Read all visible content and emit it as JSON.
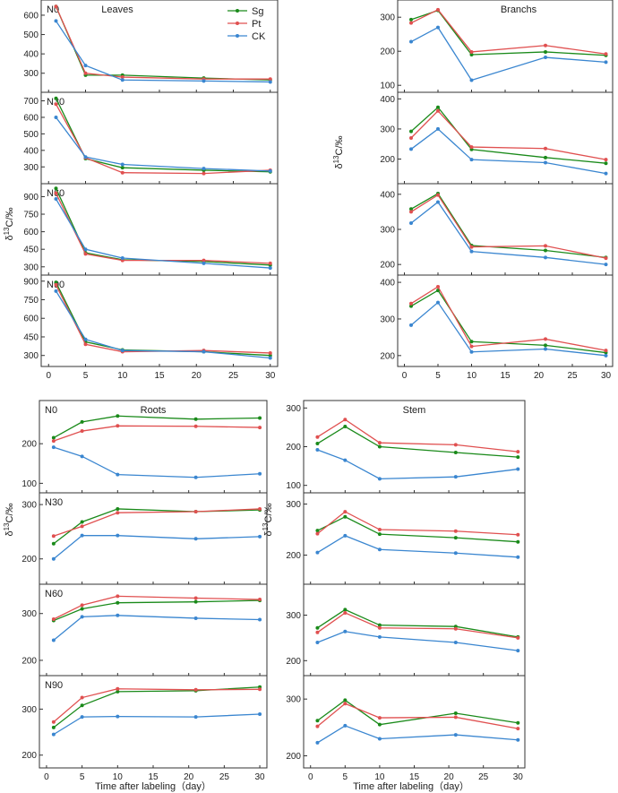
{
  "figure": {
    "y_axis_label_main": "δ",
    "y_axis_label_sup": "13",
    "y_axis_label_rest": "C/‰",
    "x_axis_label": "Time after labeling（day）"
  },
  "legend": [
    {
      "name": "Sg",
      "color": "#1a8a1a"
    },
    {
      "name": "Pt",
      "color": "#e05050"
    },
    {
      "name": "CK",
      "color": "#3a86d0"
    }
  ],
  "chart_data": [
    {
      "group": "Leaves",
      "type": "line",
      "x": [
        1,
        5,
        10,
        21,
        30
      ],
      "xlim": [
        -1,
        31
      ],
      "xticks": [
        0,
        5,
        10,
        15,
        20,
        25,
        30
      ],
      "panels": [
        {
          "label": "N0",
          "title": "Leaves",
          "ylim": [
            220,
            660
          ],
          "yticks": [
            300,
            400,
            500,
            600
          ],
          "series": [
            {
              "name": "Sg",
              "values": [
                645,
                290,
                290,
                275,
                265
              ]
            },
            {
              "name": "Pt",
              "values": [
                645,
                300,
                280,
                270,
                270
              ]
            },
            {
              "name": "CK",
              "values": [
                570,
                340,
                265,
                260,
                255
              ]
            }
          ]
        },
        {
          "label": "N30",
          "ylim": [
            220,
            730
          ],
          "yticks": [
            300,
            400,
            500,
            600,
            700
          ],
          "series": [
            {
              "name": "Sg",
              "values": [
                715,
                350,
                295,
                280,
                270
              ]
            },
            {
              "name": "Pt",
              "values": [
                680,
                355,
                265,
                260,
                280
              ]
            },
            {
              "name": "CK",
              "values": [
                600,
                360,
                315,
                290,
                275
              ]
            }
          ]
        },
        {
          "label": "N60",
          "ylim": [
            260,
            980
          ],
          "yticks": [
            300,
            450,
            600,
            750,
            900
          ],
          "series": [
            {
              "name": "Sg",
              "values": [
                970,
                420,
                360,
                345,
                315
              ]
            },
            {
              "name": "Pt",
              "values": [
                930,
                410,
                355,
                355,
                330
              ]
            },
            {
              "name": "CK",
              "values": [
                880,
                450,
                375,
                330,
                290
              ]
            }
          ]
        },
        {
          "label": "N90",
          "ylim": [
            240,
            920
          ],
          "yticks": [
            300,
            450,
            600,
            750,
            900
          ],
          "series": [
            {
              "name": "Sg",
              "values": [
                890,
                410,
                345,
                330,
                300
              ]
            },
            {
              "name": "Pt",
              "values": [
                870,
                390,
                330,
                340,
                320
              ]
            },
            {
              "name": "CK",
              "values": [
                820,
                430,
                340,
                330,
                280
              ]
            }
          ]
        }
      ]
    },
    {
      "group": "Branchs",
      "type": "line",
      "x": [
        1,
        5,
        10,
        21,
        30
      ],
      "xlim": [
        -1,
        31
      ],
      "xticks": [
        0,
        5,
        10,
        15,
        20,
        25,
        30
      ],
      "panels": [
        {
          "label": "",
          "title": "Branchs",
          "ylim": [
            90,
            340
          ],
          "yticks": [
            100,
            200,
            300
          ],
          "series": [
            {
              "name": "Sg",
              "values": [
                293,
                320,
                190,
                198,
                188
              ]
            },
            {
              "name": "Pt",
              "values": [
                283,
                322,
                198,
                217,
                192
              ]
            },
            {
              "name": "CK",
              "values": [
                228,
                270,
                115,
                182,
                168
              ]
            }
          ]
        },
        {
          "label": "",
          "ylim": [
            130,
            410
          ],
          "yticks": [
            200,
            300,
            400
          ],
          "series": [
            {
              "name": "Sg",
              "values": [
                292,
                372,
                232,
                205,
                186
              ]
            },
            {
              "name": "Pt",
              "values": [
                270,
                360,
                240,
                235,
                198
              ]
            },
            {
              "name": "CK",
              "values": [
                233,
                300,
                198,
                188,
                152
              ]
            }
          ]
        },
        {
          "label": "",
          "ylim": [
            180,
            420
          ],
          "yticks": [
            200,
            300,
            400
          ],
          "series": [
            {
              "name": "Sg",
              "values": [
                358,
                402,
                254,
                240,
                220
              ]
            },
            {
              "name": "Pt",
              "values": [
                350,
                398,
                250,
                253,
                218
              ]
            },
            {
              "name": "CK",
              "values": [
                318,
                378,
                237,
                220,
                200
              ]
            }
          ]
        },
        {
          "label": "",
          "ylim": [
            180,
            410
          ],
          "yticks": [
            200,
            300,
            400
          ],
          "series": [
            {
              "name": "Sg",
              "values": [
                335,
                378,
                238,
                228,
                208
              ]
            },
            {
              "name": "Pt",
              "values": [
                342,
                388,
                225,
                245,
                214
              ]
            },
            {
              "name": "CK",
              "values": [
                283,
                345,
                210,
                218,
                200
              ]
            }
          ]
        }
      ]
    },
    {
      "group": "Roots",
      "type": "line",
      "x": [
        1,
        5,
        10,
        21,
        30
      ],
      "xlim": [
        -1,
        31
      ],
      "xticks": [
        0,
        5,
        10,
        15,
        20,
        25,
        30
      ],
      "panels": [
        {
          "label": "N0",
          "title": "Roots",
          "ylim": [
            85,
            300
          ],
          "yticks": [
            100,
            200
          ],
          "series": [
            {
              "name": "Sg",
              "values": [
                215,
                255,
                270,
                262,
                265
              ]
            },
            {
              "name": "Pt",
              "values": [
                207,
                232,
                245,
                244,
                241
              ]
            },
            {
              "name": "CK",
              "values": [
                191,
                168,
                122,
                115,
                124
              ]
            }
          ]
        },
        {
          "label": "N30",
          "ylim": [
            160,
            315
          ],
          "yticks": [
            200,
            300
          ],
          "series": [
            {
              "name": "Sg",
              "values": [
                228,
                268,
                292,
                287,
                290
              ]
            },
            {
              "name": "Pt",
              "values": [
                242,
                260,
                285,
                287,
                292
              ]
            },
            {
              "name": "CK",
              "values": [
                200,
                243,
                243,
                237,
                241
              ]
            }
          ]
        },
        {
          "label": "N60",
          "ylim": [
            175,
            355
          ],
          "yticks": [
            200,
            300
          ],
          "series": [
            {
              "name": "Sg",
              "values": [
                285,
                310,
                323,
                325,
                328
              ]
            },
            {
              "name": "Pt",
              "values": [
                288,
                318,
                337,
                333,
                330
              ]
            },
            {
              "name": "CK",
              "values": [
                243,
                293,
                296,
                290,
                287
              ]
            }
          ]
        },
        {
          "label": "N90",
          "ylim": [
            180,
            365
          ],
          "yticks": [
            200,
            300
          ],
          "series": [
            {
              "name": "Sg",
              "values": [
                260,
                308,
                338,
                340,
                348
              ]
            },
            {
              "name": "Pt",
              "values": [
                272,
                325,
                344,
                342,
                343
              ]
            },
            {
              "name": "CK",
              "values": [
                245,
                283,
                284,
                283,
                289
              ]
            }
          ]
        }
      ]
    },
    {
      "group": "Stem",
      "type": "line",
      "x": [
        1,
        5,
        10,
        21,
        30
      ],
      "xlim": [
        -1,
        31
      ],
      "xticks": [
        0,
        5,
        10,
        15,
        20,
        25,
        30
      ],
      "panels": [
        {
          "label": "",
          "title": "Stem",
          "ylim": [
            90,
            310
          ],
          "yticks": [
            100,
            200,
            300
          ],
          "series": [
            {
              "name": "Sg",
              "values": [
                208,
                252,
                200,
                185,
                173
              ]
            },
            {
              "name": "Pt",
              "values": [
                225,
                270,
                210,
                205,
                187
              ]
            },
            {
              "name": "CK",
              "values": [
                192,
                165,
                117,
                122,
                142
              ]
            }
          ]
        },
        {
          "label": "",
          "ylim": [
            150,
            315
          ],
          "yticks": [
            200,
            300
          ],
          "series": [
            {
              "name": "Sg",
              "values": [
                248,
                275,
                241,
                234,
                226
              ]
            },
            {
              "name": "Pt",
              "values": [
                242,
                285,
                250,
                247,
                240
              ]
            },
            {
              "name": "CK",
              "values": [
                205,
                238,
                211,
                204,
                196
              ]
            }
          ]
        },
        {
          "label": "",
          "ylim": [
            175,
            360
          ],
          "yticks": [
            200,
            300
          ],
          "series": [
            {
              "name": "Sg",
              "values": [
                272,
                312,
                278,
                275,
                252
              ]
            },
            {
              "name": "Pt",
              "values": [
                262,
                305,
                272,
                270,
                250
              ]
            },
            {
              "name": "CK",
              "values": [
                240,
                264,
                252,
                240,
                222
              ]
            }
          ]
        },
        {
          "label": "",
          "ylim": [
            185,
            335
          ],
          "yticks": [
            200,
            300
          ],
          "series": [
            {
              "name": "Sg",
              "values": [
                262,
                298,
                255,
                275,
                258
              ]
            },
            {
              "name": "Pt",
              "values": [
                252,
                292,
                267,
                268,
                248
              ]
            },
            {
              "name": "CK",
              "values": [
                223,
                253,
                230,
                237,
                228
              ]
            }
          ]
        }
      ]
    }
  ]
}
